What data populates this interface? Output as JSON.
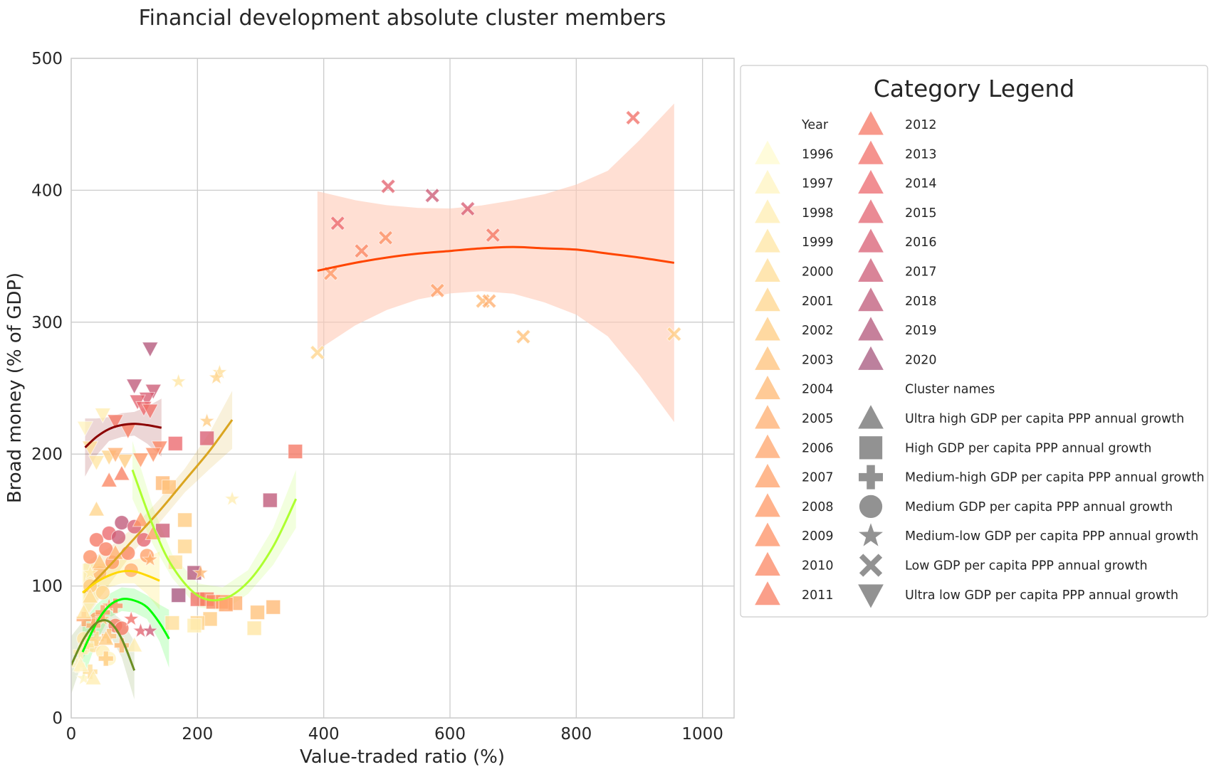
{
  "chart_data": {
    "type": "scatter",
    "title": "Financial development absolute cluster members",
    "xlabel": "Value-traded ratio (%)",
    "ylabel": "Broad money (% of GDP)",
    "xlim": [
      0,
      1050
    ],
    "ylim": [
      0,
      500
    ],
    "x_ticks": [
      "0",
      "200",
      "400",
      "600",
      "800",
      "1000"
    ],
    "y_ticks": [
      "0",
      "100",
      "200",
      "300",
      "400",
      "500"
    ],
    "grid": true,
    "legend": {
      "title": "Category Legend",
      "placement": "right",
      "hue_title": "Year",
      "years": [
        "1996",
        "1997",
        "1998",
        "1999",
        "2000",
        "2001",
        "2002",
        "2003",
        "2004",
        "2005",
        "2006",
        "2007",
        "2008",
        "2009",
        "2010",
        "2011",
        "2012",
        "2013",
        "2014",
        "2015",
        "2016",
        "2017",
        "2018",
        "2019",
        "2020"
      ],
      "style_title": "Cluster names",
      "clusters": [
        {
          "name": "Ultra high GDP per capita PPP annual growth",
          "marker": "triangle-up"
        },
        {
          "name": "High GDP per capita PPP annual growth",
          "marker": "square"
        },
        {
          "name": "Medium-high GDP per capita PPP annual growth",
          "marker": "plus"
        },
        {
          "name": "Medium GDP per capita PPP annual growth",
          "marker": "circle"
        },
        {
          "name": "Medium-low GDP per capita PPP annual growth",
          "marker": "star"
        },
        {
          "name": "Low GDP per capita PPP annual growth",
          "marker": "x"
        },
        {
          "name": "Ultra low GDP per capita PPP annual growth",
          "marker": "triangle-down"
        }
      ]
    },
    "colors": {
      "years_palette": [
        "#fffbcf",
        "#fff4c0",
        "#ffedb1",
        "#ffe6a3",
        "#ffde97",
        "#ffd58c",
        "#ffcc82",
        "#ffc27a",
        "#ffb873",
        "#ffae6f",
        "#ffa46b",
        "#ffa068",
        "#ff9866",
        "#fd9064",
        "#fb8763",
        "#f87f63",
        "#f57764",
        "#f16f68",
        "#ec686d",
        "#e36370",
        "#d85e73",
        "#cc5b76",
        "#bf5878",
        "#b3567a",
        "#a6557c"
      ],
      "fit_low": "#ff4500",
      "fit_low_band": "#ffc9b5"
    },
    "fits": [
      {
        "cluster": "Low GDP per capita PPP annual growth",
        "color": "#ff4500",
        "x": [
          390,
          450,
          500,
          550,
          600,
          650,
          700,
          750,
          800,
          850,
          900,
          955
        ],
        "y": [
          339,
          345,
          349,
          352,
          354,
          356,
          357,
          356,
          355,
          352,
          349,
          345
        ]
      },
      {
        "cluster": "Ultra low GDP per capita PPP annual growth",
        "color": "#8b0000",
        "x": [
          22,
          40,
          60,
          80,
          100,
          120,
          143
        ],
        "y": [
          205,
          213,
          219,
          222,
          223,
          222,
          220
        ]
      },
      {
        "cluster": "Medium-low GDP per capita PPP annual growth",
        "color": "#daa520",
        "x": [
          20,
          60,
          100,
          140,
          180,
          220,
          255
        ],
        "y": [
          95,
          115,
          136,
          157,
          180,
          203,
          226
        ]
      },
      {
        "cluster": "High GDP per capita PPP annual growth",
        "color": "#adff2f",
        "x": [
          97,
          130,
          160,
          200,
          240,
          280,
          320,
          356
        ],
        "y": [
          188,
          145,
          115,
          93,
          90,
          103,
          130,
          166
        ]
      },
      {
        "cluster": "Medium GDP per capita PPP annual growth",
        "color": "#ffd700",
        "x": [
          18,
          40,
          60,
          80,
          100,
          120,
          140
        ],
        "y": [
          95,
          103,
          108,
          111,
          111,
          108,
          104
        ]
      },
      {
        "cluster": "Medium-high GDP per capita PPP annual growth",
        "color": "#00ff00",
        "x": [
          18,
          40,
          60,
          80,
          100,
          120,
          140,
          155
        ],
        "y": [
          50,
          72,
          85,
          90,
          89,
          84,
          72,
          60
        ]
      },
      {
        "cluster": "Ultra high GDP per capita PPP annual growth",
        "color": "#6b8e23",
        "x": [
          0,
          20,
          40,
          60,
          80,
          100
        ],
        "y": [
          40,
          60,
          72,
          73,
          60,
          36
        ]
      }
    ],
    "series": [
      {
        "name": "Low GDP per capita PPP annual growth",
        "marker": "x",
        "points": [
          [
            890,
            455,
            17
          ],
          [
            502,
            403,
            19
          ],
          [
            572,
            396,
            21
          ],
          [
            628,
            386,
            20
          ],
          [
            422,
            375,
            18
          ],
          [
            668,
            366,
            16
          ],
          [
            498,
            364,
            13
          ],
          [
            460,
            354,
            14
          ],
          [
            411,
            337,
            12
          ],
          [
            580,
            324,
            11
          ],
          [
            652,
            316,
            8
          ],
          [
            662,
            316,
            9
          ],
          [
            716,
            289,
            7
          ],
          [
            955,
            291,
            6
          ],
          [
            390,
            277,
            5
          ]
        ]
      },
      {
        "name": "Ultra low GDP per capita PPP annual growth",
        "marker": "triangle-down",
        "points": [
          [
            125,
            280,
            23
          ],
          [
            100,
            252,
            22
          ],
          [
            130,
            248,
            21
          ],
          [
            120,
            242,
            20
          ],
          [
            105,
            240,
            19
          ],
          [
            115,
            235,
            18
          ],
          [
            125,
            233,
            17
          ],
          [
            70,
            225,
            16
          ],
          [
            90,
            218,
            15
          ],
          [
            140,
            205,
            14
          ],
          [
            30,
            205,
            4
          ],
          [
            60,
            198,
            5
          ],
          [
            40,
            194,
            3
          ],
          [
            110,
            196,
            12
          ],
          [
            50,
            230,
            2
          ],
          [
            22,
            220,
            1
          ],
          [
            85,
            195,
            6
          ],
          [
            130,
            200,
            13
          ],
          [
            70,
            200,
            9
          ]
        ]
      },
      {
        "name": "High GDP per capita PPP annual growth",
        "marker": "square",
        "points": [
          [
            355,
            202,
            16
          ],
          [
            315,
            165,
            22
          ],
          [
            215,
            212,
            20
          ],
          [
            165,
            208,
            18
          ],
          [
            145,
            178,
            8
          ],
          [
            155,
            175,
            7
          ],
          [
            180,
            150,
            6
          ],
          [
            180,
            130,
            5
          ],
          [
            165,
            118,
            4
          ],
          [
            145,
            142,
            21
          ],
          [
            195,
            110,
            23
          ],
          [
            170,
            93,
            24
          ],
          [
            200,
            90,
            17
          ],
          [
            215,
            90,
            15
          ],
          [
            225,
            88,
            14
          ],
          [
            240,
            88,
            12
          ],
          [
            260,
            87,
            9
          ],
          [
            245,
            86,
            10
          ],
          [
            320,
            84,
            8
          ],
          [
            295,
            80,
            7
          ],
          [
            220,
            75,
            6
          ],
          [
            200,
            72,
            5
          ],
          [
            160,
            72,
            4
          ],
          [
            290,
            68,
            3
          ],
          [
            195,
            70,
            2
          ]
        ]
      },
      {
        "name": "Medium GDP per capita PPP annual growth",
        "marker": "circle",
        "points": [
          [
            80,
            148,
            22
          ],
          [
            100,
            145,
            20
          ],
          [
            60,
            140,
            18
          ],
          [
            40,
            135,
            16
          ],
          [
            75,
            137,
            21
          ],
          [
            115,
            135,
            19
          ],
          [
            55,
            128,
            15
          ],
          [
            90,
            125,
            14
          ],
          [
            30,
            122,
            13
          ],
          [
            65,
            118,
            12
          ],
          [
            45,
            110,
            8
          ],
          [
            30,
            100,
            6
          ],
          [
            50,
            95,
            5
          ],
          [
            70,
            70,
            15
          ],
          [
            40,
            75,
            10
          ],
          [
            35,
            55,
            4
          ],
          [
            20,
            60,
            3
          ],
          [
            50,
            50,
            2
          ],
          [
            60,
            45,
            1
          ],
          [
            120,
            123,
            11
          ],
          [
            95,
            112,
            9
          ],
          [
            80,
            68,
            16
          ]
        ]
      },
      {
        "name": "Medium-low GDP per capita PPP annual growth",
        "marker": "star",
        "points": [
          [
            235,
            262,
            4
          ],
          [
            170,
            255,
            3
          ],
          [
            230,
            258,
            5
          ],
          [
            215,
            225,
            6
          ],
          [
            255,
            166,
            2
          ],
          [
            205,
            110,
            8
          ],
          [
            125,
            120,
            9
          ],
          [
            95,
            75,
            17
          ],
          [
            110,
            66,
            19
          ],
          [
            125,
            66,
            21
          ],
          [
            50,
            75,
            7
          ],
          [
            60,
            85,
            10
          ],
          [
            30,
            110,
            2
          ],
          [
            20,
            30,
            1
          ]
        ]
      },
      {
        "name": "Medium-high GDP per capita PPP annual growth",
        "marker": "plus",
        "points": [
          [
            10,
            40,
            1
          ],
          [
            25,
            55,
            3
          ],
          [
            40,
            60,
            5
          ],
          [
            60,
            62,
            7
          ],
          [
            35,
            70,
            9
          ],
          [
            50,
            80,
            11
          ],
          [
            70,
            85,
            13
          ],
          [
            15,
            50,
            2
          ],
          [
            30,
            35,
            4
          ],
          [
            55,
            45,
            6
          ],
          [
            80,
            55,
            8
          ],
          [
            20,
            75,
            10
          ]
        ]
      },
      {
        "name": "Ultra high GDP per capita PPP annual growth",
        "marker": "triangle-up",
        "points": [
          [
            40,
            158,
            5
          ],
          [
            60,
            180,
            14
          ],
          [
            80,
            185,
            15
          ],
          [
            110,
            150,
            12
          ],
          [
            70,
            125,
            9
          ],
          [
            45,
            118,
            7
          ],
          [
            30,
            92,
            4
          ],
          [
            20,
            80,
            3
          ],
          [
            55,
            60,
            6
          ],
          [
            100,
            55,
            2
          ],
          [
            15,
            40,
            1
          ],
          [
            35,
            30,
            2
          ],
          [
            130,
            140,
            11
          ]
        ]
      }
    ]
  }
}
